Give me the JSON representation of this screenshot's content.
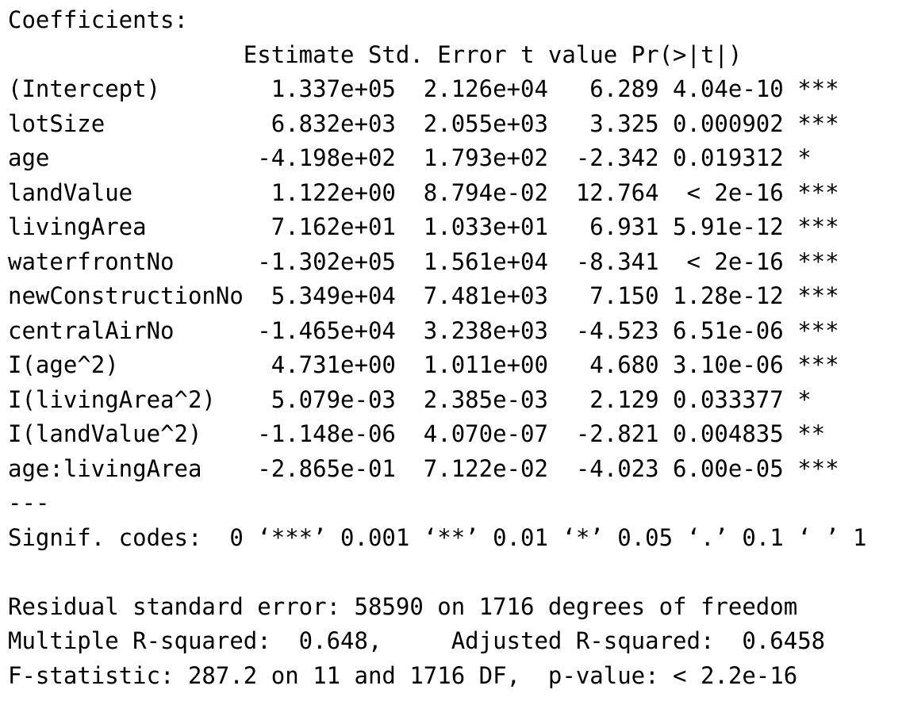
{
  "output": {
    "coefficients_heading": "Coefficients:",
    "table_header": "                 Estimate Std. Error t value Pr(>|t|)    ",
    "rows": [
      {
        "text": "(Intercept)        1.337e+05  2.126e+04   6.289 4.04e-10 ***"
      },
      {
        "text": "lotSize            6.832e+03  2.055e+03   3.325 0.000902 ***"
      },
      {
        "text": "age               -4.198e+02  1.793e+02  -2.342 0.019312 *  "
      },
      {
        "text": "landValue          1.122e+00  8.794e-02  12.764  < 2e-16 ***"
      },
      {
        "text": "livingArea         7.162e+01  1.033e+01   6.931 5.91e-12 ***"
      },
      {
        "text": "waterfrontNo      -1.302e+05  1.561e+04  -8.341  < 2e-16 ***"
      },
      {
        "text": "newConstructionNo  5.349e+04  7.481e+03   7.150 1.28e-12 ***"
      },
      {
        "text": "centralAirNo      -1.465e+04  3.238e+03  -4.523 6.51e-06 ***"
      },
      {
        "text": "I(age^2)           4.731e+00  1.011e+00   4.680 3.10e-06 ***"
      },
      {
        "text": "I(livingArea^2)    5.079e-03  2.385e-03   2.129 0.033377 *  "
      },
      {
        "text": "I(landValue^2)    -1.148e-06  4.070e-07  -2.821 0.004835 ** "
      },
      {
        "text": "age:livingArea    -2.865e-01  7.122e-02  -4.023 6.00e-05 ***"
      }
    ],
    "separator": "---",
    "signif_codes": "Signif. codes:  0 ‘***’ 0.001 ‘**’ 0.01 ‘*’ 0.05 ‘.’ 0.1 ‘ ’ 1",
    "blank": "",
    "residual_se": "Residual standard error: 58590 on 1716 degrees of freedom",
    "r_squared": "Multiple R-squared:  0.648,\tAdjusted R-squared:  0.6458 ",
    "f_statistic": "F-statistic: 287.2 on 11 and 1716 DF,  p-value: < 2.2e-16"
  }
}
